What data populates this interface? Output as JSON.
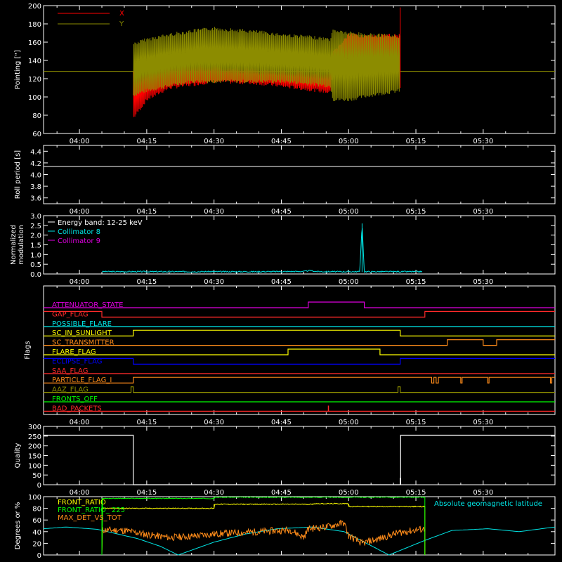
{
  "time_axis": {
    "tick_labels": [
      "04:00",
      "04:15",
      "04:30",
      "04:45",
      "05:00",
      "05:15",
      "05:30"
    ],
    "tick_minutes": [
      240,
      255,
      270,
      285,
      300,
      315,
      330
    ],
    "range_minutes": [
      232,
      346
    ]
  },
  "colors": {
    "background": "#000000",
    "axes": "#ffffff",
    "red": "#ff0000",
    "olive": "#8c8c00",
    "cyan": "#00e5e5",
    "magenta": "#e000e0",
    "yellow": "#ffff00",
    "green": "#00ff00",
    "orange": "#ff8c1a",
    "blue": "#0000ff",
    "white": "#ffffff"
  },
  "chart_data": [
    {
      "type": "line",
      "panel": "pointing",
      "ylabel": "Pointing [\"]",
      "ylim": [
        60,
        200
      ],
      "yticks": [
        60,
        80,
        100,
        120,
        140,
        160,
        180,
        200
      ],
      "series": [
        {
          "name": "X",
          "color": "#ff0000",
          "envelope_x": [
            252,
            255,
            260,
            270,
            280,
            290,
            296,
            296.5,
            300,
            305,
            311.5
          ],
          "envelope_low": [
            75,
            95,
            108,
            115,
            113,
            107,
            103,
            130,
            130,
            128,
            128
          ],
          "envelope_high": [
            130,
            135,
            138,
            135,
            132,
            130,
            128,
            150,
            170,
            168,
            170
          ],
          "spikes": [
            {
              "x": 311.5,
              "y": 198
            }
          ]
        },
        {
          "name": "Y",
          "color": "#8c8c00",
          "baseline": 128,
          "envelope_x": [
            252,
            255,
            260,
            265,
            270,
            275,
            280,
            285,
            290,
            296,
            296.5,
            300,
            305,
            311.5
          ],
          "envelope_low": [
            100,
            105,
            110,
            115,
            115,
            115,
            115,
            115,
            113,
            110,
            95,
            95,
            100,
            105
          ],
          "envelope_high": [
            160,
            165,
            170,
            174,
            177,
            175,
            173,
            170,
            168,
            165,
            175,
            172,
            170,
            168
          ]
        }
      ]
    },
    {
      "type": "line",
      "panel": "roll",
      "ylabel": "Roll period [s]",
      "ylim": [
        3.5,
        4.5
      ],
      "yticks": [
        3.6,
        3.8,
        4.0,
        4.2,
        4.4
      ],
      "series": [
        {
          "x": [
            232,
            346
          ],
          "y": [
            4.14,
            4.14
          ],
          "color": "#ffffff"
        }
      ]
    },
    {
      "type": "line",
      "panel": "modulation",
      "ylabel": [
        "Normalized",
        "modulation"
      ],
      "ylim": [
        0,
        3.0
      ],
      "yticks": [
        0.0,
        0.5,
        1.0,
        1.5,
        2.0,
        2.5,
        3.0
      ],
      "legend": [
        "Energy band: 12-25 keV",
        "Collimator 8",
        "Collimator 9"
      ],
      "series": [
        {
          "name": "Collimator 8",
          "color": "#00e5e5",
          "x": [
            245,
            280,
            290,
            291.5,
            292.5,
            294,
            302.5,
            303,
            303.5,
            316.5
          ],
          "y": [
            0.12,
            0.12,
            0.13,
            0.18,
            0.13,
            0.12,
            0.12,
            2.6,
            0.12,
            0.12
          ]
        },
        {
          "name": "Collimator 9",
          "color": "#e000e0",
          "x": [],
          "y": []
        }
      ]
    },
    {
      "type": "step",
      "panel": "flags",
      "ylabel": "Flags",
      "flags": [
        {
          "label": "ATTENUATOR_STATE",
          "color": "#e000e0",
          "transitions": [
            [
              232,
              0
            ],
            [
              291,
              1
            ],
            [
              303.5,
              0
            ]
          ]
        },
        {
          "label": "GAP_FLAG",
          "color": "#ff2a2a",
          "transitions": [
            [
              232,
              1
            ],
            [
              245,
              0
            ],
            [
              317,
              1
            ]
          ]
        },
        {
          "label": "POSSIBLE_FLARE",
          "color": "#00e5e5",
          "transitions": [
            [
              232,
              0
            ]
          ]
        },
        {
          "label": "SC_IN_SUNLIGHT",
          "color": "#ffff00",
          "transitions": [
            [
              232,
              0
            ],
            [
              252,
              1
            ],
            [
              311.5,
              0
            ]
          ]
        },
        {
          "label": "SC_TRANSMITTER",
          "color": "#ff8c1a",
          "transitions": [
            [
              232,
              0
            ],
            [
              322,
              1
            ],
            [
              330,
              0
            ],
            [
              333,
              1
            ]
          ]
        },
        {
          "label": "FLARE_FLAG",
          "color": "#ffff00",
          "transitions": [
            [
              232,
              0
            ],
            [
              286.5,
              1
            ],
            [
              307,
              0
            ]
          ]
        },
        {
          "label": "ECLIPSE_FLAG",
          "color": "#0000ff",
          "transitions": [
            [
              232,
              1
            ],
            [
              252,
              0
            ],
            [
              311.5,
              1
            ]
          ]
        },
        {
          "label": "SAA_FLAG",
          "color": "#ff2a2a",
          "transitions": [
            [
              232,
              0
            ]
          ]
        },
        {
          "label": "PARTICLE_FLAG_I",
          "color": "#ff8c1a",
          "transitions": [
            [
              232,
              0
            ],
            [
              252,
              1
            ],
            [
              318.5,
              0
            ],
            [
              319,
              1
            ],
            [
              319.5,
              0
            ],
            [
              320,
              1
            ],
            [
              325,
              0
            ],
            [
              325.3,
              1
            ],
            [
              331,
              0
            ],
            [
              331.3,
              1
            ],
            [
              345,
              0
            ],
            [
              345.3,
              1
            ]
          ]
        },
        {
          "label": "AAZ_FLAG",
          "color": "#8c8c00",
          "transitions": [
            [
              232,
              0
            ],
            [
              251.5,
              1
            ],
            [
              252,
              0
            ],
            [
              311,
              1
            ],
            [
              311.5,
              0
            ]
          ]
        },
        {
          "label": "FRONTS_OFF",
          "color": "#00ff00",
          "transitions": [
            [
              232,
              0
            ]
          ]
        },
        {
          "label": "BAD_PACKETS",
          "color": "#ff2a2a",
          "transitions": [
            [
              232,
              0
            ]
          ],
          "spikes": [
            295.5
          ]
        }
      ]
    },
    {
      "type": "line",
      "panel": "quality",
      "ylabel": "Quality",
      "ylim": [
        0,
        300
      ],
      "yticks": [
        0,
        50,
        100,
        150,
        200,
        250,
        300
      ],
      "series": [
        {
          "color": "#ffffff",
          "x": [
            232,
            252,
            252,
            311.5,
            311.5,
            311.6,
            311.6,
            346
          ],
          "y": [
            255,
            255,
            0,
            0,
            35,
            0,
            255,
            255
          ]
        }
      ]
    },
    {
      "type": "line",
      "panel": "ratios",
      "ylabel": "Degrees or %",
      "ylim": [
        0,
        100
      ],
      "yticks": [
        0,
        20,
        40,
        60,
        80,
        100
      ],
      "legend": [
        "FRONT_RATIO",
        "FRONT_RATIO_ 225",
        "MAX_DET_VS_TOT"
      ],
      "annotation": "Absolute geomagnetic latitude",
      "series": [
        {
          "name": "FRONT_RATIO",
          "color": "#ffff00",
          "x": [
            245,
            245,
            270,
            270,
            292,
            292,
            300,
            300,
            317,
            317
          ],
          "y": [
            0,
            80,
            80,
            87,
            87,
            88,
            88,
            83,
            83,
            0
          ]
        },
        {
          "name": "FRONT_RATIO_ 225",
          "color": "#00ff00",
          "x": [
            245,
            245,
            270,
            270,
            317,
            317
          ],
          "y": [
            0,
            97,
            97,
            99,
            99,
            0
          ]
        },
        {
          "name": "MAX_DET_VS_TOT",
          "color": "#ff8c1a",
          "x": [
            245,
            245,
            250,
            255,
            260,
            265,
            270,
            280,
            287,
            290,
            291,
            295,
            299,
            300,
            303,
            307,
            311,
            317,
            317
          ],
          "y": [
            0,
            43,
            42,
            35,
            30,
            32,
            36,
            40,
            43,
            30,
            45,
            48,
            55,
            33,
            20,
            28,
            38,
            45,
            0
          ]
        },
        {
          "name": "Absolute geomagnetic latitude",
          "color": "#00e5e5",
          "x": [
            232,
            237,
            244,
            253,
            258,
            262,
            270,
            277,
            284,
            292,
            299,
            306,
            309,
            317,
            323,
            331,
            338,
            346
          ],
          "y": [
            45,
            48,
            44,
            28,
            15,
            0,
            22,
            36,
            45,
            48,
            40,
            12,
            0,
            25,
            42,
            45,
            40,
            48
          ]
        }
      ]
    }
  ]
}
